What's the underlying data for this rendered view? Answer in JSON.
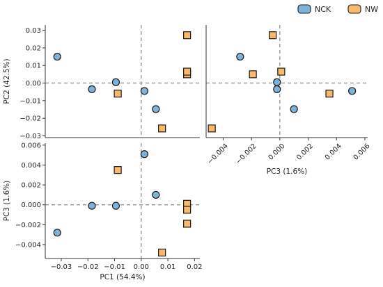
{
  "legend": {
    "placement": "top-right",
    "entries": [
      {
        "name": "NCK",
        "color": "#7fb2d9",
        "marker": "circle"
      },
      {
        "name": "NW",
        "color": "#f7b96b",
        "marker": "square"
      }
    ]
  },
  "chart_data": [
    {
      "type": "scatter",
      "panel": "PC1 vs PC2",
      "xlabel": "",
      "ylabel": "PC2 (42.5%)",
      "xlim": [
        -0.036,
        0.022
      ],
      "ylim": [
        -0.031,
        0.033
      ],
      "xticks": [],
      "yticks": [
        {
          "v": 0.03,
          "label": "0.03"
        },
        {
          "v": 0.02,
          "label": "0.02"
        },
        {
          "v": 0.01,
          "label": "0.01"
        },
        {
          "v": 0.0,
          "label": "0.00"
        },
        {
          "v": -0.01,
          "label": "−0.01"
        },
        {
          "v": -0.02,
          "label": "−0.02"
        },
        {
          "v": -0.03,
          "label": "−0.03"
        }
      ],
      "grid": false,
      "reference_lines": {
        "x": 0,
        "y": 0
      },
      "series": [
        {
          "name": "NCK",
          "points": [
            {
              "x": -0.0315,
              "y": 0.015
            },
            {
              "x": -0.0185,
              "y": -0.0035
            },
            {
              "x": -0.0095,
              "y": 0.0005
            },
            {
              "x": 0.0012,
              "y": -0.0045
            },
            {
              "x": 0.0055,
              "y": -0.0148
            }
          ]
        },
        {
          "name": "NW",
          "points": [
            {
              "x": -0.0088,
              "y": -0.006
            },
            {
              "x": 0.0078,
              "y": -0.0258
            },
            {
              "x": 0.0172,
              "y": 0.005
            },
            {
              "x": 0.0172,
              "y": 0.0065
            },
            {
              "x": 0.0172,
              "y": 0.0272
            }
          ]
        }
      ]
    },
    {
      "type": "scatter",
      "panel": "PC3 vs PC2",
      "xlabel": "PC3 (1.6%)",
      "ylabel": "",
      "xlim": [
        -0.0052,
        0.0062
      ],
      "ylim": [
        -0.031,
        0.033
      ],
      "xticks": [
        {
          "v": -0.004,
          "label": "−0.004"
        },
        {
          "v": -0.002,
          "label": "−0.002"
        },
        {
          "v": 0.0,
          "label": "0.000"
        },
        {
          "v": 0.002,
          "label": "0.002"
        },
        {
          "v": 0.004,
          "label": "0.004"
        },
        {
          "v": 0.006,
          "label": "0.006"
        }
      ],
      "yticks": [],
      "grid": false,
      "reference_lines": {
        "x": 0,
        "y": 0
      },
      "series": [
        {
          "name": "NCK",
          "points": [
            {
              "x": -0.0028,
              "y": 0.015
            },
            {
              "x": -0.0002,
              "y": 0.0005
            },
            {
              "x": -0.0002,
              "y": -0.0035
            },
            {
              "x": 0.001,
              "y": -0.0148
            },
            {
              "x": 0.0051,
              "y": -0.0045
            }
          ]
        },
        {
          "name": "NW",
          "points": [
            {
              "x": -0.0048,
              "y": -0.0258
            },
            {
              "x": -0.0019,
              "y": 0.005
            },
            {
              "x": -0.0005,
              "y": 0.0272
            },
            {
              "x": 0.0001,
              "y": 0.0065
            },
            {
              "x": 0.0035,
              "y": -0.006
            }
          ]
        }
      ]
    },
    {
      "type": "scatter",
      "panel": "PC1 vs PC3",
      "xlabel": "PC1 (54.4%)",
      "ylabel": "PC3 (1.6%)",
      "xlim": [
        -0.036,
        0.022
      ],
      "ylim": [
        -0.0054,
        0.0062
      ],
      "xticks": [
        {
          "v": -0.03,
          "label": "−0.03"
        },
        {
          "v": -0.02,
          "label": "−0.02"
        },
        {
          "v": -0.01,
          "label": "−0.01"
        },
        {
          "v": 0.0,
          "label": "0.00"
        },
        {
          "v": 0.01,
          "label": "0.01"
        },
        {
          "v": 0.02,
          "label": "0.02"
        }
      ],
      "yticks": [
        {
          "v": 0.006,
          "label": "0.006"
        },
        {
          "v": 0.004,
          "label": "0.004"
        },
        {
          "v": 0.002,
          "label": "0.002"
        },
        {
          "v": 0.0,
          "label": "0.000"
        },
        {
          "v": -0.002,
          "label": "−0.002"
        },
        {
          "v": -0.004,
          "label": "−0.004"
        }
      ],
      "grid": false,
      "reference_lines": {
        "x": 0,
        "y": 0
      },
      "series": [
        {
          "name": "NCK",
          "points": [
            {
              "x": -0.0315,
              "y": -0.0028
            },
            {
              "x": -0.0185,
              "y": -0.0001
            },
            {
              "x": -0.0095,
              "y": -0.0001
            },
            {
              "x": 0.0012,
              "y": 0.0051
            },
            {
              "x": 0.0055,
              "y": 0.001
            }
          ]
        },
        {
          "name": "NW",
          "points": [
            {
              "x": -0.0088,
              "y": 0.0035
            },
            {
              "x": 0.0078,
              "y": -0.0048
            },
            {
              "x": 0.0172,
              "y": 0.0001
            },
            {
              "x": 0.0172,
              "y": -0.0005
            },
            {
              "x": 0.0172,
              "y": -0.0019
            }
          ]
        }
      ]
    }
  ]
}
